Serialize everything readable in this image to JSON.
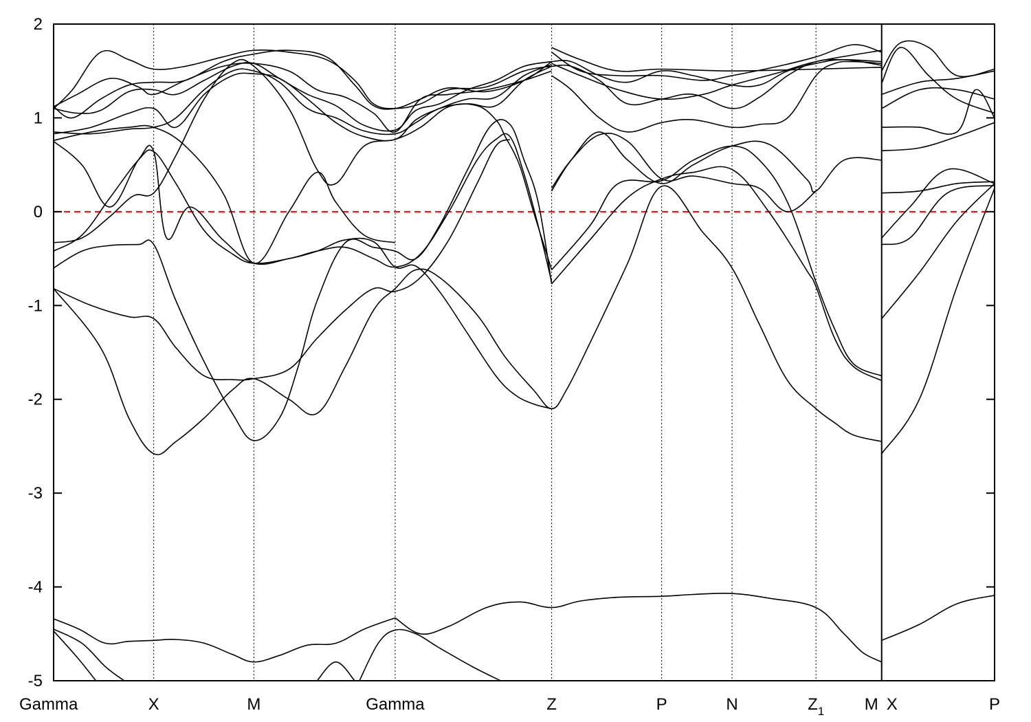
{
  "chart_data": {
    "type": "line",
    "title": "",
    "xlabel": "",
    "ylabel": "",
    "ylim": [
      -5,
      2
    ],
    "y_ticks": [
      "2",
      "1",
      "0",
      "-1",
      "-2",
      "-3",
      "-4",
      "-5"
    ],
    "y_tick_values": [
      2,
      1,
      0,
      -1,
      -2,
      -3,
      -4,
      -5
    ],
    "x_range": [
      0,
      10
    ],
    "kpoints": [
      {
        "label": "Gamma",
        "x": 0.0
      },
      {
        "label": "X",
        "x": 1.064
      },
      {
        "label": "M",
        "x": 2.128
      },
      {
        "label": "Gamma",
        "x": 3.63
      },
      {
        "label": "Z",
        "x": 5.293
      },
      {
        "label": "P",
        "x": 6.462
      },
      {
        "label": "N",
        "x": 7.21
      },
      {
        "label": "Z",
        "sub": "1",
        "x": 8.102
      },
      {
        "label": "M",
        "x": 8.8
      },
      {
        "label": "X",
        "x": 8.8
      },
      {
        "label": "P",
        "x": 10.0
      }
    ],
    "kpoint_lines": [
      1.064,
      2.128,
      3.63,
      5.293,
      6.462,
      7.21,
      8.102,
      8.8
    ],
    "path_break_x": 8.8,
    "fermi_level": 0,
    "grid": false,
    "colors": {
      "bands": "#000000",
      "fermi": "#ff0000"
    },
    "series": [
      {
        "x": [
          0.0,
          0.27,
          0.55,
          0.8,
          1.064,
          1.3,
          1.6,
          1.9,
          2.128,
          2.4,
          2.7,
          3.0,
          3.3,
          3.63
        ],
        "y": [
          -4.34,
          -4.45,
          -4.6,
          -4.58,
          -4.57,
          -4.56,
          -4.6,
          -4.72,
          -4.8,
          -4.73,
          -4.62,
          -4.6,
          -4.45,
          -4.33
        ]
      },
      {
        "x": [
          3.63,
          3.9,
          4.2,
          4.6,
          4.95,
          5.293,
          5.6,
          6.0,
          6.462,
          6.8,
          7.21,
          7.6,
          8.102,
          8.4,
          8.6,
          8.8
        ],
        "y": [
          -4.33,
          -4.5,
          -4.42,
          -4.22,
          -4.16,
          -4.22,
          -4.15,
          -4.11,
          -4.1,
          -4.08,
          -4.07,
          -4.12,
          -4.22,
          -4.5,
          -4.7,
          -4.8
        ]
      },
      {
        "x": [
          8.8,
          9.2,
          9.6,
          10.0
        ],
        "y": [
          -4.57,
          -4.4,
          -4.18,
          -4.09
        ]
      },
      {
        "x": [
          0.0,
          0.3,
          0.55,
          0.75
        ],
        "y": [
          -4.45,
          -4.6,
          -4.85,
          -5.0
        ]
      },
      {
        "x": [
          0.0,
          0.25,
          0.45
        ],
        "y": [
          -4.47,
          -4.75,
          -5.0
        ]
      },
      {
        "x": [
          3.25,
          3.45,
          3.63,
          3.85,
          4.1,
          4.45,
          4.75
        ],
        "y": [
          -5.0,
          -4.6,
          -4.46,
          -4.5,
          -4.65,
          -4.85,
          -5.0
        ]
      },
      {
        "x": [
          2.8,
          3.0,
          3.2
        ],
        "y": [
          -5.0,
          -4.8,
          -5.0
        ]
      },
      {
        "x": [
          0.0,
          0.5,
          0.8,
          1.064,
          1.3,
          1.6,
          1.9,
          2.128,
          2.5,
          2.8,
          3.1,
          3.4,
          3.63,
          3.85,
          4.1,
          4.5,
          4.8,
          5.1,
          5.293,
          5.45,
          5.7,
          6.1,
          6.462,
          6.9,
          7.21,
          7.5,
          7.8,
          8.102,
          8.3,
          8.5,
          8.8
        ],
        "y": [
          -0.82,
          -1.45,
          -2.2,
          -2.58,
          -2.45,
          -2.2,
          -1.9,
          -1.78,
          -2.0,
          -2.15,
          -1.65,
          -1.05,
          -0.82,
          -0.62,
          -0.7,
          -1.1,
          -1.55,
          -1.9,
          -2.1,
          -1.9,
          -1.4,
          -0.55,
          0.27,
          -0.22,
          -0.6,
          -1.2,
          -1.8,
          -2.1,
          -2.25,
          -2.38,
          -2.45
        ]
      },
      {
        "x": [
          0.0,
          0.4,
          0.8,
          1.064,
          1.3,
          1.6,
          1.9,
          2.128,
          2.5,
          2.8,
          3.1,
          3.4,
          3.63,
          3.9,
          4.2,
          4.5,
          4.7,
          4.85
        ],
        "y": [
          -0.82,
          -1.0,
          -1.12,
          -1.14,
          -1.45,
          -1.75,
          -1.79,
          -1.78,
          -1.68,
          -1.35,
          -1.05,
          -0.82,
          -0.85,
          -0.7,
          -0.3,
          0.3,
          0.7,
          0.77
        ]
      },
      {
        "x": [
          0.0,
          0.3,
          0.6,
          0.9,
          1.064,
          1.3,
          1.6,
          1.9,
          2.128,
          2.4,
          2.6,
          2.8,
          3.1,
          3.4,
          3.63,
          3.85,
          4.1,
          4.4,
          4.65,
          4.85,
          5.0,
          5.15,
          5.293
        ],
        "y": [
          -0.6,
          -0.42,
          -0.36,
          -0.35,
          -0.35,
          -0.95,
          -1.6,
          -2.15,
          -2.44,
          -2.2,
          -1.65,
          -0.95,
          -0.33,
          -0.38,
          -0.42,
          -0.5,
          -0.15,
          0.45,
          0.92,
          0.93,
          0.55,
          0.1,
          -0.77
        ]
      },
      {
        "x": [
          5.293,
          5.7,
          6.1,
          6.462,
          6.8,
          7.21,
          7.6,
          8.0,
          8.102,
          8.3,
          8.5,
          8.8
        ],
        "y": [
          -0.77,
          -0.3,
          0.15,
          0.35,
          0.42,
          0.45,
          0.0,
          -0.62,
          -0.8,
          -1.35,
          -1.65,
          -1.8
        ]
      },
      {
        "x": [
          0.0,
          0.3,
          0.6,
          0.85,
          1.064,
          1.3,
          1.6,
          1.9,
          2.128,
          2.5,
          2.8,
          3.0,
          3.3,
          3.63,
          3.9,
          4.2,
          4.5,
          4.7,
          4.8,
          4.95,
          5.1,
          5.293
        ],
        "y": [
          -0.33,
          -0.28,
          -0.05,
          0.17,
          0.2,
          0.6,
          1.2,
          1.58,
          1.55,
          1.1,
          0.45,
          0.3,
          0.7,
          0.77,
          0.9,
          1.12,
          1.13,
          0.98,
          0.8,
          0.5,
          0.0,
          -0.62
        ]
      },
      {
        "x": [
          5.293,
          5.7,
          6.0,
          6.462,
          6.8,
          7.21,
          7.5,
          7.8,
          8.102,
          8.3,
          8.5,
          8.8
        ],
        "y": [
          -0.62,
          -0.15,
          0.3,
          0.33,
          0.55,
          0.7,
          0.55,
          0.1,
          -0.75,
          -1.25,
          -1.62,
          -1.75
        ]
      },
      {
        "x": [
          0.0,
          0.3,
          0.6,
          0.9,
          1.064,
          1.3,
          1.6,
          1.9,
          2.128,
          2.5,
          2.8,
          3.1,
          3.4,
          3.63,
          3.9,
          4.2,
          4.5,
          4.7,
          4.85,
          5.0,
          5.15,
          5.293
        ],
        "y": [
          -0.42,
          -0.25,
          0.15,
          0.55,
          0.64,
          0.3,
          -0.2,
          -0.45,
          -0.55,
          -0.5,
          -0.42,
          -0.38,
          -0.5,
          -0.59,
          -0.45,
          0.0,
          0.55,
          0.77,
          0.8,
          0.4,
          -0.15,
          -0.75
        ]
      },
      {
        "x": [
          0.0,
          0.3,
          0.6,
          0.9,
          1.064,
          1.2,
          1.45,
          1.8,
          2.128,
          2.5,
          2.8,
          3.1,
          3.4,
          3.63,
          3.85,
          4.1,
          4.4,
          4.7,
          4.9,
          5.1,
          5.293
        ],
        "y": [
          0.75,
          0.5,
          0.05,
          0.55,
          0.64,
          -0.28,
          0.05,
          -0.3,
          -0.55,
          -0.5,
          -0.42,
          -0.3,
          -0.32,
          -0.59,
          -0.58,
          -0.85,
          -1.3,
          -1.75,
          -1.95,
          -2.05,
          -2.1
        ]
      },
      {
        "x": [
          0.0,
          0.4,
          0.8,
          1.064,
          1.4,
          1.8,
          2.128,
          2.5,
          2.8,
          3.0,
          3.3,
          3.63
        ],
        "y": [
          0.76,
          0.85,
          0.9,
          0.9,
          0.7,
          0.2,
          -0.55,
          0.0,
          0.42,
          0.1,
          -0.25,
          -0.33
        ]
      },
      {
        "x": [
          0.0,
          0.4,
          0.8,
          1.064,
          1.3,
          1.6,
          1.9,
          2.128,
          2.4,
          2.7,
          3.0,
          3.3,
          3.63,
          3.85,
          4.1,
          4.4,
          4.7,
          5.0,
          5.293
        ],
        "y": [
          0.83,
          0.9,
          1.05,
          1.1,
          0.9,
          1.25,
          1.45,
          1.47,
          1.42,
          1.2,
          0.95,
          0.8,
          0.77,
          0.98,
          1.1,
          1.2,
          1.22,
          1.45,
          1.57
        ]
      },
      {
        "x": [
          0.0,
          0.4,
          0.8,
          1.064,
          1.3,
          1.6,
          1.9,
          2.128,
          2.4,
          2.7,
          3.0,
          3.3,
          3.63,
          3.85,
          4.1,
          4.4,
          4.7,
          5.0,
          5.293
        ],
        "y": [
          0.85,
          0.83,
          0.88,
          0.9,
          1.0,
          1.3,
          1.5,
          1.5,
          1.38,
          1.1,
          1.0,
          0.86,
          0.83,
          0.95,
          1.1,
          1.15,
          1.13,
          1.4,
          1.55
        ]
      },
      {
        "x": [
          0.0,
          0.25,
          0.5,
          0.8,
          1.064,
          1.3,
          1.6,
          1.9,
          2.128,
          2.4,
          2.7,
          3.0,
          3.3,
          3.63,
          3.85,
          4.1,
          4.4,
          4.7,
          5.0,
          5.293
        ],
        "y": [
          1.1,
          1.05,
          1.08,
          1.28,
          1.3,
          1.25,
          1.4,
          1.55,
          1.58,
          1.42,
          1.25,
          1.13,
          0.92,
          0.87,
          1.08,
          1.15,
          1.3,
          1.4,
          1.55,
          1.6
        ]
      },
      {
        "x": [
          0.0,
          0.25,
          0.6,
          0.9,
          1.064,
          1.4,
          1.8,
          2.128,
          2.5,
          2.8,
          3.1,
          3.4,
          3.63,
          3.9,
          4.2,
          4.6,
          5.0,
          5.293
        ],
        "y": [
          1.12,
          1.25,
          1.42,
          1.33,
          1.25,
          1.4,
          1.55,
          1.58,
          1.5,
          1.3,
          1.22,
          1.05,
          0.85,
          1.2,
          1.25,
          1.3,
          1.4,
          1.5
        ]
      },
      {
        "x": [
          0.0,
          0.2,
          0.5,
          0.8,
          1.064,
          1.4,
          1.8,
          2.128,
          2.5,
          2.9,
          3.2,
          3.4,
          3.63,
          3.9,
          4.2,
          4.6,
          5.0,
          5.293
        ],
        "y": [
          1.1,
          1.3,
          1.7,
          1.62,
          1.52,
          1.55,
          1.65,
          1.72,
          1.7,
          1.62,
          1.4,
          1.15,
          1.1,
          1.15,
          1.3,
          1.33,
          1.5,
          1.55
        ]
      },
      {
        "x": [
          0.0,
          0.2,
          0.5,
          0.8,
          1.064,
          1.4,
          1.8,
          2.128,
          2.5,
          2.9,
          3.2,
          3.4,
          3.63,
          3.9,
          4.2,
          4.6,
          5.0,
          5.293
        ],
        "y": [
          1.12,
          1.0,
          1.2,
          1.35,
          1.38,
          1.4,
          1.6,
          1.68,
          1.72,
          1.65,
          1.35,
          1.13,
          1.1,
          1.2,
          1.32,
          1.28,
          1.4,
          1.6
        ]
      },
      {
        "x": [
          5.293,
          5.5,
          5.8,
          6.1,
          6.462,
          6.8,
          7.21,
          7.6,
          8.0,
          8.102,
          8.4,
          8.8
        ],
        "y": [
          0.22,
          0.55,
          0.85,
          0.55,
          0.3,
          0.5,
          0.7,
          0.72,
          0.35,
          0.22,
          0.55,
          0.55
        ]
      },
      {
        "x": [
          5.293,
          5.5,
          5.8,
          6.1,
          6.462,
          6.8,
          7.21,
          7.5,
          7.8,
          8.102
        ],
        "y": [
          0.25,
          0.55,
          0.82,
          0.75,
          0.35,
          0.38,
          0.3,
          0.25,
          0.0,
          0.22
        ]
      },
      {
        "x": [
          5.293,
          5.5,
          5.8,
          6.1,
          6.462,
          6.8,
          7.21,
          7.5,
          7.8,
          8.102,
          8.3,
          8.5,
          8.8
        ],
        "y": [
          1.45,
          1.3,
          1.0,
          0.85,
          0.95,
          0.98,
          0.9,
          0.93,
          1.0,
          1.45,
          1.58,
          1.6,
          1.58
        ]
      },
      {
        "x": [
          5.293,
          5.5,
          5.8,
          6.1,
          6.462,
          6.8,
          7.21,
          7.5,
          7.8,
          8.102,
          8.4,
          8.8
        ],
        "y": [
          1.55,
          1.55,
          1.4,
          1.15,
          1.2,
          1.25,
          1.1,
          1.22,
          1.45,
          1.6,
          1.62,
          1.6
        ]
      },
      {
        "x": [
          5.293,
          5.5,
          5.8,
          6.1,
          6.462,
          6.8,
          7.21,
          7.5,
          7.8,
          8.102,
          8.4,
          8.8
        ],
        "y": [
          1.6,
          1.6,
          1.45,
          1.38,
          1.5,
          1.45,
          1.35,
          1.35,
          1.5,
          1.58,
          1.62,
          1.56
        ]
      },
      {
        "x": [
          5.293,
          5.6,
          6.0,
          6.462,
          7.21,
          8.102,
          8.8
        ],
        "y": [
          1.75,
          1.62,
          1.5,
          1.52,
          1.5,
          1.52,
          1.54
        ]
      },
      {
        "x": [
          5.293,
          5.6,
          6.0,
          6.462,
          6.9,
          7.21,
          7.7,
          8.102,
          8.5,
          8.8
        ],
        "y": [
          1.7,
          1.5,
          1.45,
          1.45,
          1.4,
          1.45,
          1.55,
          1.65,
          1.78,
          1.7
        ]
      },
      {
        "x": [
          5.293,
          5.6,
          6.0,
          6.462,
          6.9,
          7.21,
          7.7,
          8.102,
          8.8
        ],
        "y": [
          1.58,
          1.45,
          1.3,
          1.2,
          1.25,
          1.35,
          1.48,
          1.6,
          1.72
        ]
      },
      {
        "x": [
          8.8,
          9.2,
          9.6,
          10.0
        ],
        "y": [
          -2.58,
          -2.0,
          -0.8,
          0.25
        ]
      },
      {
        "x": [
          8.8,
          9.2,
          9.6,
          10.0
        ],
        "y": [
          -1.14,
          -0.65,
          -0.1,
          0.3
        ]
      },
      {
        "x": [
          8.8,
          9.1,
          9.5,
          10.0
        ],
        "y": [
          -0.35,
          -0.28,
          0.2,
          0.28
        ]
      },
      {
        "x": [
          8.8,
          9.1,
          9.5,
          10.0
        ],
        "y": [
          -0.28,
          0.05,
          0.45,
          0.3
        ]
      },
      {
        "x": [
          8.8,
          9.2,
          9.6,
          10.0
        ],
        "y": [
          0.2,
          0.22,
          0.3,
          0.32
        ]
      },
      {
        "x": [
          8.8,
          9.2,
          9.6,
          10.0
        ],
        "y": [
          0.65,
          0.68,
          0.8,
          0.95
        ]
      },
      {
        "x": [
          8.8,
          9.2,
          9.6,
          9.8,
          10.0
        ],
        "y": [
          0.9,
          0.9,
          0.85,
          1.3,
          1.0
        ]
      },
      {
        "x": [
          8.8,
          9.2,
          9.6,
          10.0
        ],
        "y": [
          1.1,
          1.3,
          1.3,
          1.2
        ]
      },
      {
        "x": [
          8.8,
          9.2,
          9.6,
          10.0
        ],
        "y": [
          1.25,
          1.38,
          1.42,
          1.5
        ]
      },
      {
        "x": [
          8.8,
          9.0,
          9.3,
          9.6,
          10.0
        ],
        "y": [
          1.37,
          1.75,
          1.45,
          1.2,
          1.05
        ]
      },
      {
        "x": [
          8.8,
          9.0,
          9.3,
          9.6,
          10.0
        ],
        "y": [
          1.5,
          1.8,
          1.75,
          1.45,
          1.52
        ]
      }
    ]
  }
}
